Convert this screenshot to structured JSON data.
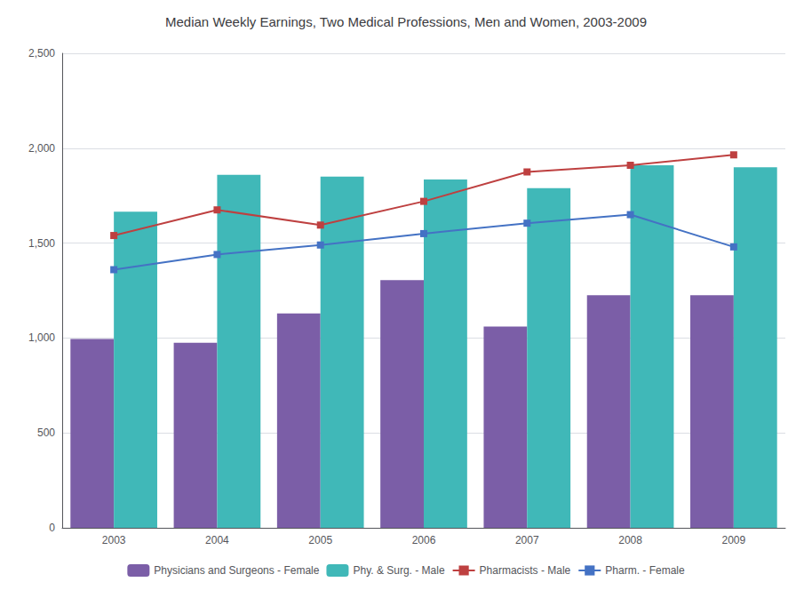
{
  "chart_data": {
    "type": "bar",
    "title": "Median Weekly Earnings, Two Medical Professions, Men and Women, 2003-2009",
    "categories": [
      "2003",
      "2004",
      "2005",
      "2006",
      "2007",
      "2008",
      "2009"
    ],
    "series": [
      {
        "name": "Physicians and Surgeons - Female",
        "type": "bar",
        "color": "#7B5EA7",
        "values": [
          995,
          975,
          1130,
          1305,
          1060,
          1225,
          1225
        ]
      },
      {
        "name": "Phy. & Surg. - Male",
        "type": "bar",
        "color": "#40B8B8",
        "values": [
          1665,
          1860,
          1850,
          1835,
          1790,
          1910,
          1900
        ]
      },
      {
        "name": "Pharmacists - Male",
        "type": "line",
        "color": "#BE4040",
        "marker": "square",
        "values": [
          1540,
          1675,
          1595,
          1720,
          1875,
          1910,
          1965
        ]
      },
      {
        "name": "Pharm. - Female",
        "type": "line",
        "color": "#4472C4",
        "marker": "square",
        "values": [
          1360,
          1440,
          1490,
          1550,
          1605,
          1650,
          1480
        ]
      }
    ],
    "ylim": [
      0,
      2500
    ],
    "yticks": [
      0,
      500,
      {
        "value": 1000,
        "label": "1,000"
      },
      {
        "value": 1500,
        "label": "1,500"
      },
      {
        "value": 2000,
        "label": "2,000"
      },
      {
        "value": 2500,
        "label": "2,500"
      }
    ],
    "grid": true,
    "legend": "bottom"
  }
}
